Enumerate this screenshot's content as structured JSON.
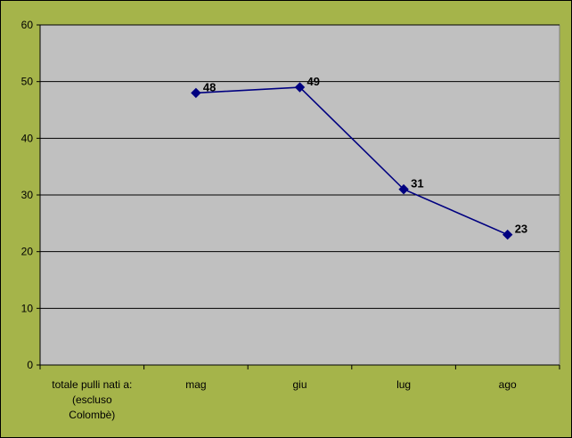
{
  "chart_data": {
    "type": "line",
    "categories": [
      [
        "totale pulli nati a:",
        "(escluso",
        "Colombè)"
      ],
      [
        "mag"
      ],
      [
        "giu"
      ],
      [
        "lug"
      ],
      [
        "ago"
      ]
    ],
    "series": [
      {
        "values": [
          null,
          48,
          49,
          31,
          23
        ]
      }
    ],
    "ylim": [
      0,
      60
    ],
    "yticks": [
      0,
      10,
      20,
      30,
      40,
      50,
      60
    ],
    "grid": true,
    "legend": "none",
    "colors": {
      "frame_background": "#a5b44a",
      "plot_background": "#c0c0c0",
      "series_line": "#000080",
      "gridline": "#000000"
    },
    "data_labels": true
  }
}
